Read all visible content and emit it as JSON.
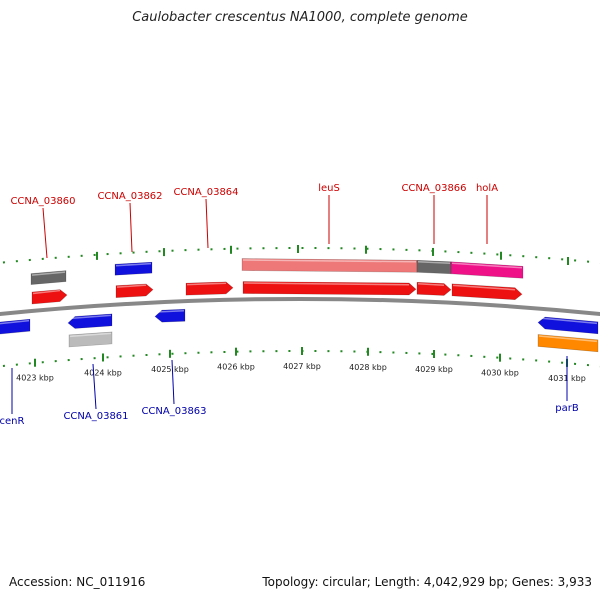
{
  "title": "Caulobacter crescentus NA1000, complete genome",
  "footer": {
    "accession": "Accession: NC_011916",
    "summary": "Topology: circular; Length: 4,042,929 bp; Genes: 3,933"
  },
  "colors": {
    "cds": "#ee1111",
    "gene": "#666666",
    "gene_light": "#bbbbbb",
    "reverse_cds": "#1111dd",
    "rrna": "#ee7777",
    "trna": "#ee1188",
    "misc": "#ff8800",
    "forward_label": "#cc0000",
    "reverse_label": "#0000aa",
    "backbone": "#888888",
    "tick": "#228822"
  },
  "axis": {
    "unit": "kbp",
    "tick_labels": [
      "4023 kbp",
      "4024 kbp",
      "4025 kbp",
      "4026 kbp",
      "4027 kbp",
      "4028 kbp",
      "4029 kbp",
      "4030 kbp",
      "4031 kbp"
    ]
  },
  "forward_labels": [
    "CCNA_03860",
    "CCNA_03862",
    "CCNA_03864",
    "leuS",
    "CCNA_03866",
    "holA"
  ],
  "reverse_labels": [
    "cenR",
    "CCNA_03861",
    "CCNA_03863",
    "parB"
  ]
}
